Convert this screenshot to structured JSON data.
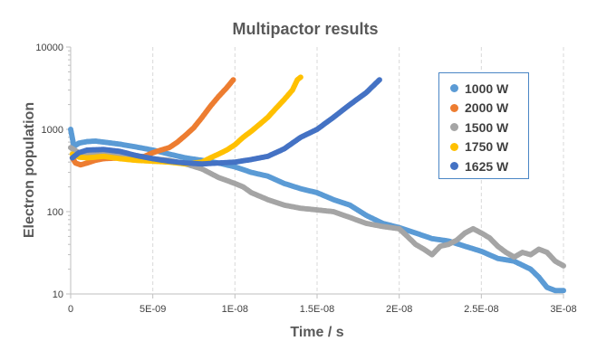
{
  "chart_data": {
    "type": "scatter",
    "title": "Multipactor results",
    "xlabel": "Time / s",
    "ylabel": "Electron population",
    "xscale": "linear",
    "yscale": "log",
    "xlim": [
      0,
      3e-08
    ],
    "ylim": [
      10,
      10000
    ],
    "x_ticks": [
      {
        "value": 0,
        "label": "0"
      },
      {
        "value": 5e-09,
        "label": "5E-09"
      },
      {
        "value": 1e-08,
        "label": "1E-08"
      },
      {
        "value": 1.5e-08,
        "label": "1.5E-08"
      },
      {
        "value": 2e-08,
        "label": "2E-08"
      },
      {
        "value": 2.5e-08,
        "label": "2.5E-08"
      },
      {
        "value": 3e-08,
        "label": "3E-08"
      }
    ],
    "y_ticks": [
      {
        "value": 10,
        "label": "10"
      },
      {
        "value": 100,
        "label": "100"
      },
      {
        "value": 1000,
        "label": "1000"
      },
      {
        "value": 10000,
        "label": "10000"
      }
    ],
    "grid": "vertical",
    "legend_position": "right",
    "series": [
      {
        "name": "1000 W",
        "color": "#5b9bd5",
        "points": [
          [
            0,
            1000
          ],
          [
            2e-10,
            620
          ],
          [
            5e-10,
            680
          ],
          [
            1e-09,
            710
          ],
          [
            1.5e-09,
            720
          ],
          [
            2e-09,
            700
          ],
          [
            2.5e-09,
            680
          ],
          [
            3e-09,
            660
          ],
          [
            4e-09,
            610
          ],
          [
            5e-09,
            560
          ],
          [
            6e-09,
            500
          ],
          [
            7e-09,
            450
          ],
          [
            8e-09,
            420
          ],
          [
            9e-09,
            390
          ],
          [
            1e-08,
            350
          ],
          [
            1.1e-08,
            300
          ],
          [
            1.2e-08,
            270
          ],
          [
            1.3e-08,
            220
          ],
          [
            1.4e-08,
            190
          ],
          [
            1.5e-08,
            170
          ],
          [
            1.6e-08,
            140
          ],
          [
            1.7e-08,
            120
          ],
          [
            1.8e-08,
            90
          ],
          [
            1.9e-08,
            72
          ],
          [
            2e-08,
            64
          ],
          [
            2.1e-08,
            55
          ],
          [
            2.2e-08,
            47
          ],
          [
            2.3e-08,
            44
          ],
          [
            2.4e-08,
            38
          ],
          [
            2.5e-08,
            33
          ],
          [
            2.6e-08,
            27
          ],
          [
            2.7e-08,
            25
          ],
          [
            2.8e-08,
            20
          ],
          [
            2.85e-08,
            16
          ],
          [
            2.9e-08,
            12
          ],
          [
            2.95e-08,
            11
          ],
          [
            3e-08,
            11
          ]
        ]
      },
      {
        "name": "2000 W",
        "color": "#ed7d31",
        "points": [
          [
            1e-10,
            450
          ],
          [
            3e-10,
            390
          ],
          [
            6e-10,
            370
          ],
          [
            1e-09,
            390
          ],
          [
            1.5e-09,
            420
          ],
          [
            2e-09,
            440
          ],
          [
            3e-09,
            450
          ],
          [
            4e-09,
            460
          ],
          [
            4.5e-09,
            470
          ],
          [
            5e-09,
            520
          ],
          [
            5.5e-09,
            560
          ],
          [
            6e-09,
            600
          ],
          [
            6.5e-09,
            700
          ],
          [
            7e-09,
            850
          ],
          [
            7.5e-09,
            1050
          ],
          [
            8e-09,
            1400
          ],
          [
            8.5e-09,
            1900
          ],
          [
            9e-09,
            2500
          ],
          [
            9.5e-09,
            3200
          ],
          [
            9.9e-09,
            4000
          ]
        ]
      },
      {
        "name": "1500 W",
        "color": "#a5a5a5",
        "points": [
          [
            0,
            600
          ],
          [
            5e-10,
            520
          ],
          [
            1e-09,
            500
          ],
          [
            2e-09,
            500
          ],
          [
            3e-09,
            510
          ],
          [
            4e-09,
            480
          ],
          [
            5e-09,
            440
          ],
          [
            6e-09,
            420
          ],
          [
            7e-09,
            380
          ],
          [
            8e-09,
            330
          ],
          [
            9e-09,
            260
          ],
          [
            1e-08,
            220
          ],
          [
            1.05e-08,
            200
          ],
          [
            1.1e-08,
            170
          ],
          [
            1.2e-08,
            140
          ],
          [
            1.3e-08,
            120
          ],
          [
            1.4e-08,
            110
          ],
          [
            1.5e-08,
            105
          ],
          [
            1.6e-08,
            100
          ],
          [
            1.7e-08,
            85
          ],
          [
            1.8e-08,
            72
          ],
          [
            1.9e-08,
            66
          ],
          [
            2e-08,
            62
          ],
          [
            2.05e-08,
            50
          ],
          [
            2.1e-08,
            40
          ],
          [
            2.15e-08,
            35
          ],
          [
            2.2e-08,
            30
          ],
          [
            2.25e-08,
            38
          ],
          [
            2.3e-08,
            40
          ],
          [
            2.35e-08,
            45
          ],
          [
            2.4e-08,
            55
          ],
          [
            2.45e-08,
            62
          ],
          [
            2.5e-08,
            55
          ],
          [
            2.55e-08,
            48
          ],
          [
            2.6e-08,
            38
          ],
          [
            2.65e-08,
            32
          ],
          [
            2.7e-08,
            28
          ],
          [
            2.75e-08,
            32
          ],
          [
            2.8e-08,
            30
          ],
          [
            2.85e-08,
            35
          ],
          [
            2.9e-08,
            32
          ],
          [
            2.95e-08,
            25
          ],
          [
            3e-08,
            22
          ]
        ]
      },
      {
        "name": "1750 W",
        "color": "#ffc000",
        "points": [
          [
            1e-10,
            500
          ],
          [
            5e-10,
            460
          ],
          [
            1e-09,
            450
          ],
          [
            2e-09,
            470
          ],
          [
            3e-09,
            440
          ],
          [
            4e-09,
            420
          ],
          [
            5e-09,
            410
          ],
          [
            6e-09,
            400
          ],
          [
            7e-09,
            380
          ],
          [
            8e-09,
            400
          ],
          [
            8.5e-09,
            450
          ],
          [
            9e-09,
            500
          ],
          [
            9.5e-09,
            560
          ],
          [
            1e-08,
            650
          ],
          [
            1.05e-08,
            800
          ],
          [
            1.1e-08,
            950
          ],
          [
            1.15e-08,
            1150
          ],
          [
            1.2e-08,
            1400
          ],
          [
            1.25e-08,
            1800
          ],
          [
            1.3e-08,
            2300
          ],
          [
            1.35e-08,
            3000
          ],
          [
            1.38e-08,
            4000
          ],
          [
            1.4e-08,
            4300
          ]
        ]
      },
      {
        "name": "1625 W",
        "color": "#4472c4",
        "points": [
          [
            1e-10,
            450
          ],
          [
            5e-10,
            520
          ],
          [
            1e-09,
            560
          ],
          [
            2e-09,
            570
          ],
          [
            3e-09,
            540
          ],
          [
            4e-09,
            480
          ],
          [
            5e-09,
            440
          ],
          [
            6e-09,
            410
          ],
          [
            7e-09,
            390
          ],
          [
            8e-09,
            380
          ],
          [
            9e-09,
            390
          ],
          [
            1e-08,
            400
          ],
          [
            1.1e-08,
            430
          ],
          [
            1.2e-08,
            470
          ],
          [
            1.3e-08,
            580
          ],
          [
            1.4e-08,
            800
          ],
          [
            1.5e-08,
            1000
          ],
          [
            1.6e-08,
            1400
          ],
          [
            1.7e-08,
            2000
          ],
          [
            1.8e-08,
            2800
          ],
          [
            1.85e-08,
            3500
          ],
          [
            1.88e-08,
            4000
          ]
        ]
      }
    ]
  }
}
